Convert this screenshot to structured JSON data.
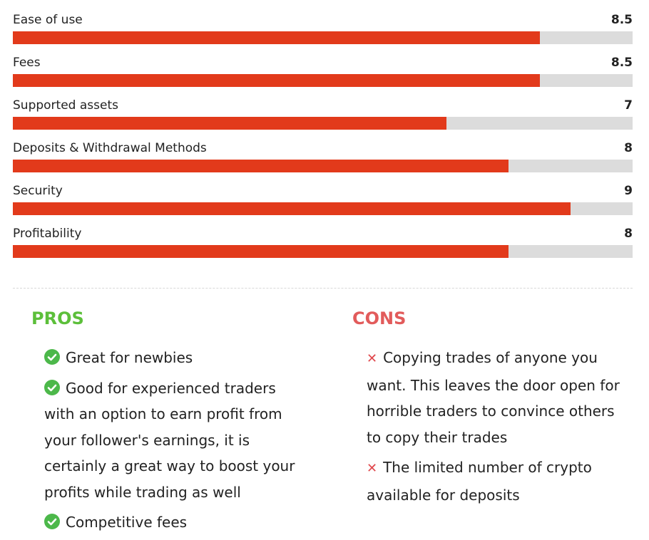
{
  "ratings": [
    {
      "label": "Ease of use",
      "score": "8.5",
      "value": 8.5,
      "max": 10
    },
    {
      "label": "Fees",
      "score": "8.5",
      "value": 8.5,
      "max": 10
    },
    {
      "label": "Supported assets",
      "score": "7",
      "value": 7,
      "max": 10
    },
    {
      "label": "Deposits & Withdrawal Methods",
      "score": "8",
      "value": 8,
      "max": 10
    },
    {
      "label": "Security",
      "score": "9",
      "value": 9,
      "max": 10
    },
    {
      "label": "Profitability",
      "score": "8",
      "value": 8,
      "max": 10
    }
  ],
  "pros": {
    "title": "PROS",
    "items": [
      "Great for newbies",
      "Good for experienced traders with an option to earn profit from your follower's earnings, it is certainly a great way to boost your profits while trading as well",
      "Competitive fees"
    ]
  },
  "cons": {
    "title": "CONS",
    "items": [
      "Copying trades of anyone you want. This leaves the door open for horrible traders to convince others to copy their trades",
      "The limited number of crypto available for deposits"
    ]
  },
  "colors": {
    "bar_fill": "#e23a1b",
    "bar_track": "#dcdcdc",
    "pros_accent": "#5cbf3a",
    "cons_accent": "#e25b5b",
    "check_icon": "#4cb84a",
    "x_icon": "#e0474c"
  },
  "icons": {
    "pro_item": "check-circle-icon",
    "con_item": "x-mark-icon"
  }
}
